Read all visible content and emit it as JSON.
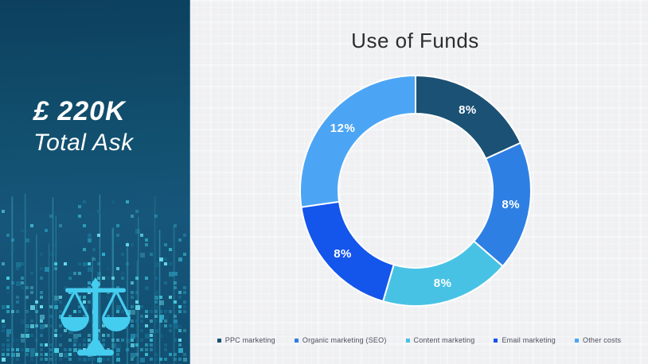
{
  "sidebar": {
    "amount": "£ 220K",
    "subtitle": "Total Ask",
    "icon": "scales-of-justice",
    "colors": {
      "bg_top": "#0c405e",
      "bg_mid": "#16567a",
      "accent": "#45cdf0"
    }
  },
  "main": {
    "title": "Use of Funds"
  },
  "chart_data": {
    "type": "pie",
    "variant": "donut",
    "title": "Use of Funds",
    "categories": [
      "PPC marketing",
      "Organic marketing (SEO)",
      "Content marketing",
      "Email marketing",
      "Other costs"
    ],
    "values": [
      8,
      8,
      8,
      8,
      12
    ],
    "labels": [
      "8%",
      "8%",
      "8%",
      "8%",
      "12%"
    ],
    "colors": [
      "#1b5174",
      "#2e7fe3",
      "#48c2e4",
      "#1455eb",
      "#4ca5f4"
    ],
    "unit": "percent",
    "start_angle_deg": 0,
    "direction": "clockwise",
    "legend_position": "bottom",
    "label_color": "#ffffff"
  }
}
